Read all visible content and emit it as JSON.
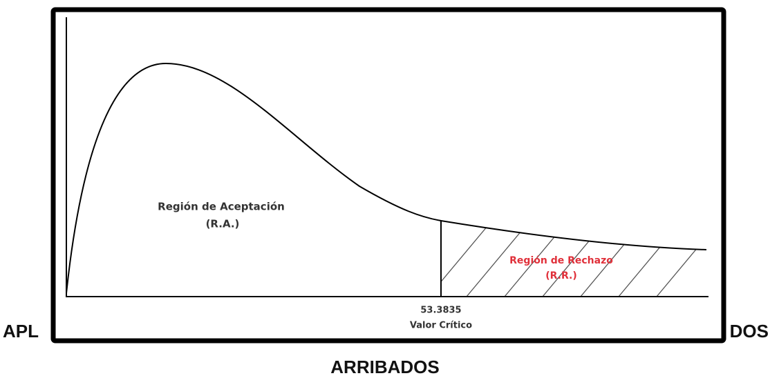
{
  "heading": {
    "left_fragment": "APL",
    "right_fragment": "DOS",
    "line2": "ARRIBADOS"
  },
  "diagram": {
    "acceptance_label": "Región de Aceptación",
    "acceptance_abbr": "(R.A.)",
    "rejection_label": "Región de Rechazo",
    "rejection_abbr": "(R.R.)",
    "critical_value": 53.3835,
    "critical_label": "Valor Crítico"
  }
}
